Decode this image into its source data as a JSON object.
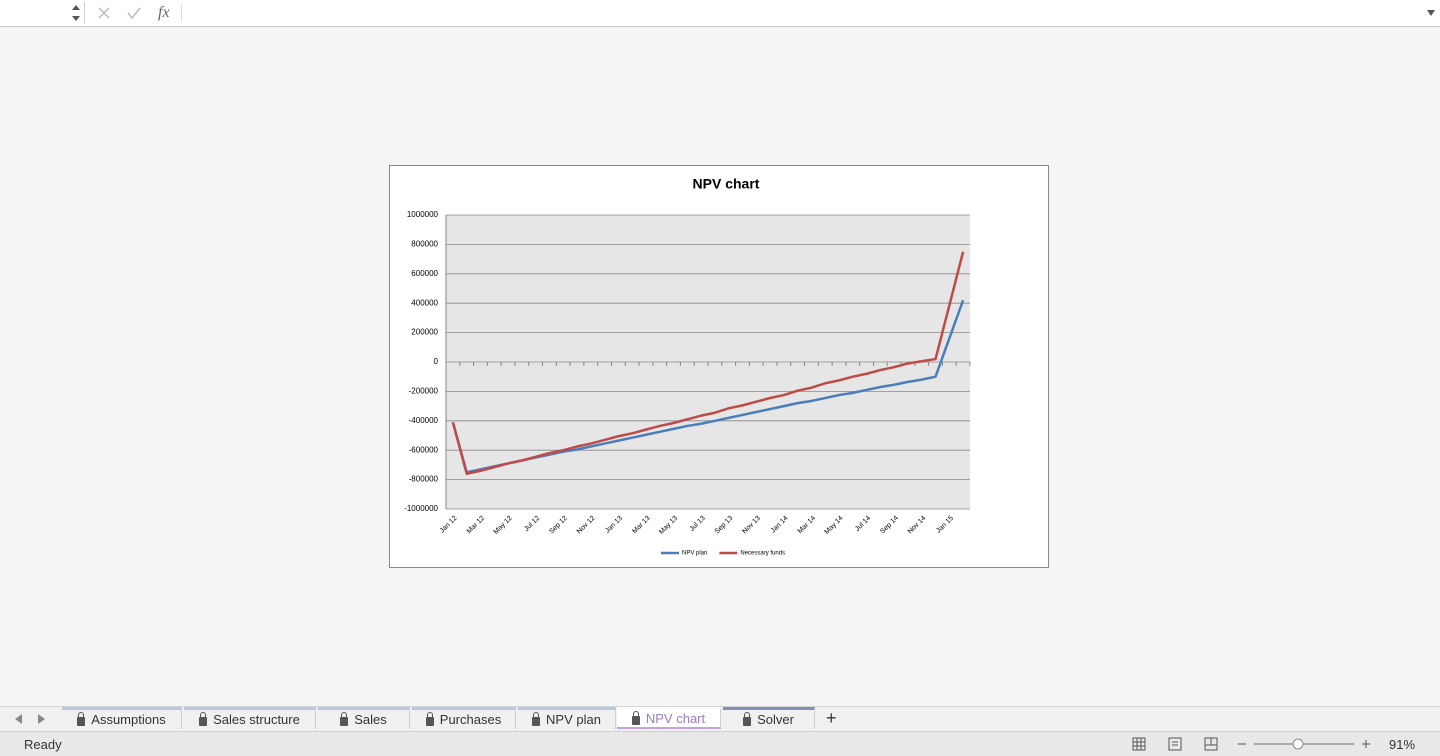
{
  "formula_bar": {
    "fx": "fx"
  },
  "chart_data": {
    "type": "line",
    "title": "NPV chart",
    "categories": [
      "Jan 12",
      null,
      "Mar 12",
      null,
      "May 12",
      null,
      "Jul 12",
      null,
      "Sep 12",
      null,
      "Nov 12",
      null,
      "Jan 13",
      null,
      "Mar 13",
      null,
      "May 13",
      null,
      "Jul 13",
      null,
      "Sep 13",
      null,
      "Nov 13",
      null,
      "Jan 14",
      null,
      "Mar 14",
      null,
      "May 14",
      null,
      "Jul 14",
      null,
      "Sep 14",
      null,
      "Nov 14",
      null,
      "Jan 15",
      null
    ],
    "series": [
      {
        "name": "NPV plan",
        "color": "#4a7ebb",
        "values": [
          -410000,
          -750000,
          -730000,
          -710000,
          -690000,
          -670000,
          -650000,
          -630000,
          -610000,
          -595000,
          -575000,
          -555000,
          -535000,
          -515000,
          -495000,
          -475000,
          -455000,
          -435000,
          -420000,
          -400000,
          -380000,
          -360000,
          -340000,
          -320000,
          -300000,
          -280000,
          -265000,
          -245000,
          -225000,
          -210000,
          -190000,
          -170000,
          -155000,
          -135000,
          -120000,
          -100000,
          160000,
          420000
        ]
      },
      {
        "name": "Necessary funds",
        "color": "#be4b48",
        "values": [
          -410000,
          -760000,
          -740000,
          -715000,
          -690000,
          -670000,
          -645000,
          -620000,
          -600000,
          -575000,
          -555000,
          -530000,
          -505000,
          -485000,
          -460000,
          -435000,
          -415000,
          -390000,
          -365000,
          -345000,
          -315000,
          -295000,
          -270000,
          -245000,
          -225000,
          -195000,
          -175000,
          -145000,
          -125000,
          -100000,
          -80000,
          -55000,
          -35000,
          -10000,
          5000,
          20000,
          385000,
          750000
        ]
      }
    ],
    "ylim": [
      -1000000,
      1000000
    ],
    "yticks": [
      -1000000,
      -800000,
      -600000,
      -400000,
      -200000,
      0,
      200000,
      400000,
      600000,
      800000,
      1000000
    ],
    "grid": true,
    "legend": "bottom"
  },
  "tabs": [
    "Assumptions",
    "Sales structure",
    "Sales",
    "Purchases",
    "NPV plan",
    "NPV chart",
    "Solver"
  ],
  "add_tab": "+",
  "status": "Ready",
  "zoom": "91%"
}
